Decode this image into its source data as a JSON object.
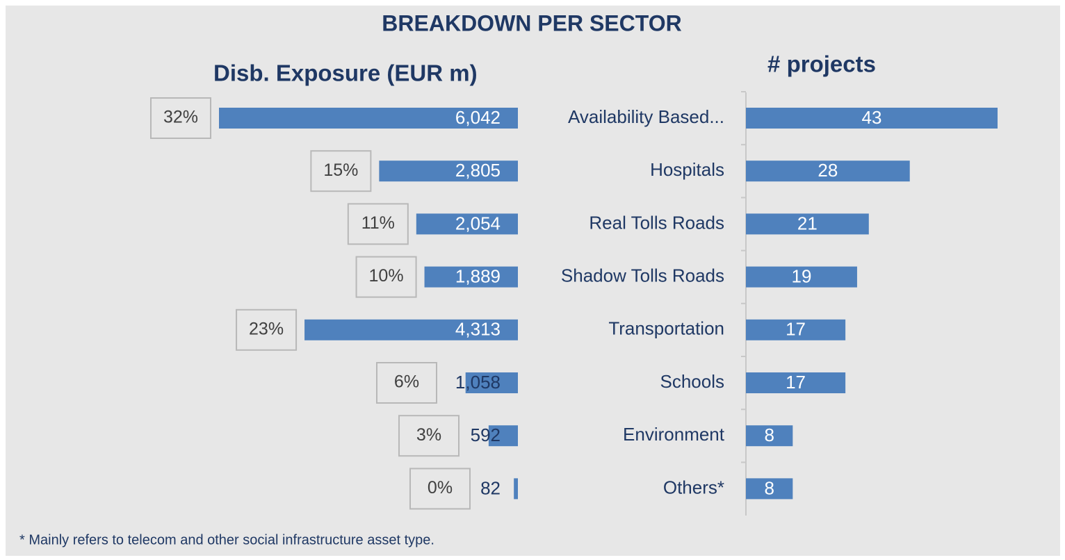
{
  "title": "BREAKDOWN PER SECTOR",
  "footnote": "* Mainly refers to telecom and other social infrastructure asset type.",
  "chart_data": [
    {
      "type": "bar",
      "orientation": "horizontal-left",
      "title": "Disb. Exposure (EUR m)",
      "color": "#4f81bd",
      "values": [
        6042,
        2805,
        2054,
        1889,
        4313,
        1058,
        592,
        82
      ],
      "value_labels": [
        "6,042",
        "2,805",
        "2,054",
        "1,889",
        "4,313",
        "1,058",
        "592",
        "82"
      ],
      "shares": [
        32,
        15,
        11,
        10,
        23,
        6,
        3,
        0
      ],
      "share_labels": [
        "32%",
        "15%",
        "11%",
        "10%",
        "23%",
        "6%",
        "3%",
        "0%"
      ]
    },
    {
      "type": "bar",
      "orientation": "horizontal",
      "title": "# projects",
      "color": "#4f81bd",
      "categories": [
        "Availability Based...",
        "Hospitals",
        "Real Tolls Roads",
        "Shadow Tolls Roads",
        "Transportation",
        "Schools",
        "Environment",
        "Others*"
      ],
      "values": [
        43,
        28,
        21,
        19,
        17,
        17,
        8,
        8
      ]
    }
  ]
}
